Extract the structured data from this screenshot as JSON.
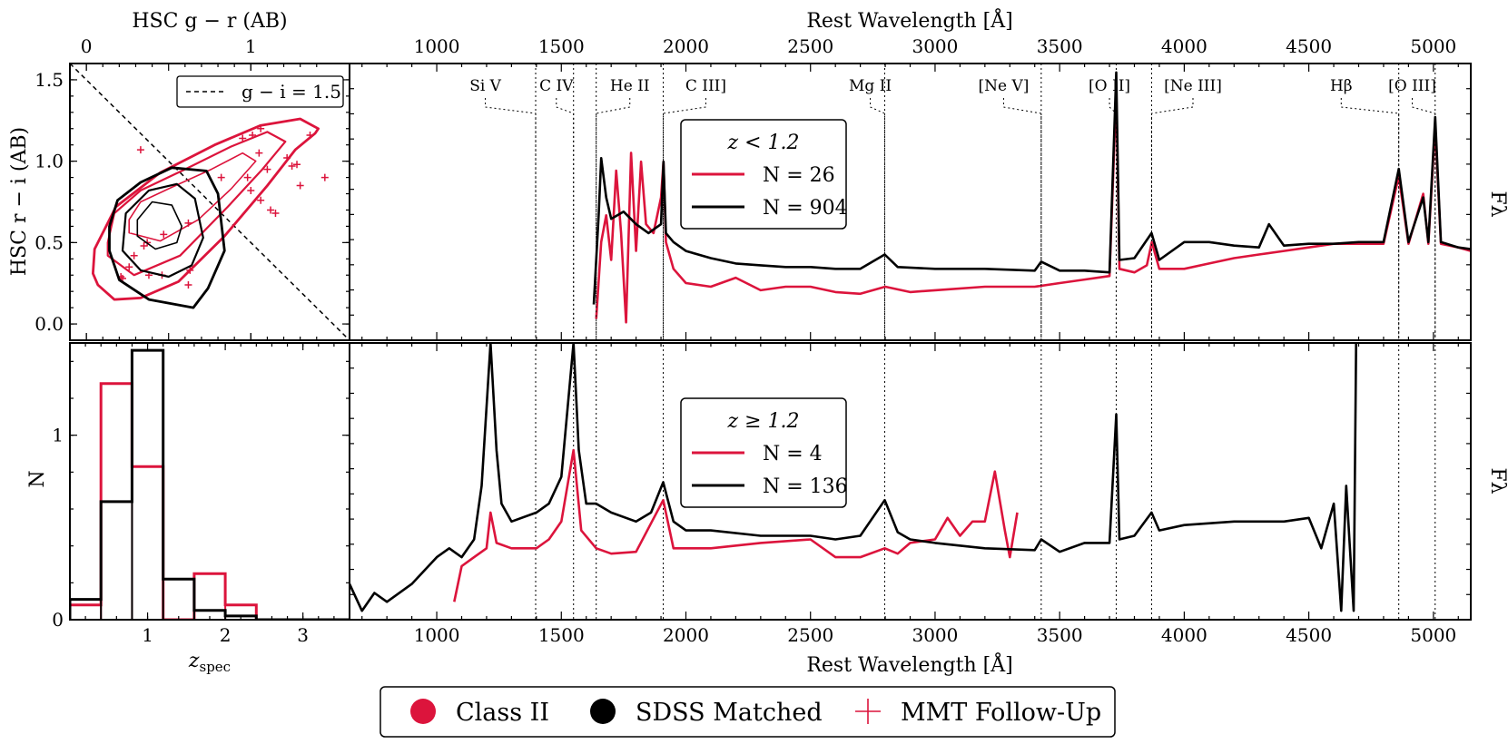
{
  "colors": {
    "class2": "#dc143c",
    "sdss": "#000000"
  },
  "legend_bottom": [
    {
      "label": "Class II",
      "marker": "circle",
      "color": "#dc143c"
    },
    {
      "label": "SDSS Matched",
      "marker": "circle",
      "color": "#000000"
    },
    {
      "label": "MMT Follow-Up",
      "marker": "plus",
      "color": "#dc143c"
    }
  ],
  "chart_data": [
    {
      "type": "scatter",
      "panel": "color-color",
      "xlabel_top": "HSC g − r (AB)",
      "ylabel": "HSC r − i (AB)",
      "xlim": [
        -0.1,
        1.6
      ],
      "ylim": [
        -0.1,
        1.6
      ],
      "x_ticks": [
        "0",
        "1"
      ],
      "y_ticks": [
        "0.0",
        "0.5",
        "1.0",
        "1.5"
      ],
      "reference_line": {
        "label": "g − i = 1.5",
        "equation": "r-i = 1.5 - (g-r)",
        "style": "dashed"
      },
      "series": [
        {
          "name": "Class II contours",
          "color": "#dc143c",
          "contours": [
            [
              [
                0.07,
                0.24
              ],
              [
                0.17,
                0.15
              ],
              [
                0.33,
                0.16
              ],
              [
                0.56,
                0.26
              ],
              [
                0.84,
                0.54
              ],
              [
                1.1,
                0.85
              ],
              [
                1.27,
                1.07
              ],
              [
                1.39,
                1.17
              ],
              [
                1.41,
                1.2
              ],
              [
                1.3,
                1.26
              ],
              [
                1.06,
                1.22
              ],
              [
                0.78,
                1.1
              ],
              [
                0.45,
                0.93
              ],
              [
                0.18,
                0.72
              ],
              [
                0.05,
                0.46
              ],
              [
                0.04,
                0.31
              ],
              [
                0.07,
                0.24
              ]
            ],
            [
              [
                0.13,
                0.42
              ],
              [
                0.29,
                0.3
              ],
              [
                0.57,
                0.42
              ],
              [
                0.86,
                0.72
              ],
              [
                1.07,
                0.95
              ],
              [
                1.21,
                1.12
              ],
              [
                1.1,
                1.18
              ],
              [
                0.88,
                1.09
              ],
              [
                0.6,
                0.95
              ],
              [
                0.33,
                0.82
              ],
              [
                0.17,
                0.68
              ],
              [
                0.13,
                0.5
              ],
              [
                0.13,
                0.42
              ]
            ],
            [
              [
                0.26,
                0.56
              ],
              [
                0.45,
                0.51
              ],
              [
                0.68,
                0.64
              ],
              [
                0.88,
                0.83
              ],
              [
                1.03,
                1.0
              ],
              [
                0.95,
                1.05
              ],
              [
                0.76,
                0.95
              ],
              [
                0.52,
                0.84
              ],
              [
                0.33,
                0.75
              ],
              [
                0.26,
                0.64
              ],
              [
                0.26,
                0.56
              ]
            ]
          ],
          "points": [
            [
              0.33,
              1.07
            ],
            [
              0.95,
              1.14
            ],
            [
              1.01,
              1.16
            ],
            [
              1.06,
              1.2
            ],
            [
              1.36,
              1.16
            ],
            [
              1.45,
              0.9
            ],
            [
              0.98,
              0.9
            ],
            [
              1.0,
              0.82
            ],
            [
              1.05,
              1.05
            ],
            [
              1.1,
              0.95
            ],
            [
              1.22,
              1.02
            ],
            [
              1.25,
              0.97
            ],
            [
              1.28,
              0.98
            ],
            [
              1.3,
              0.85
            ],
            [
              0.82,
              0.9
            ],
            [
              0.62,
              0.62
            ],
            [
              0.47,
              0.55
            ],
            [
              0.37,
              0.5
            ],
            [
              0.35,
              0.48
            ],
            [
              0.29,
              0.42
            ],
            [
              0.26,
              0.35
            ],
            [
              0.21,
              0.29
            ],
            [
              0.22,
              0.28
            ],
            [
              0.38,
              0.3
            ],
            [
              0.46,
              0.3
            ],
            [
              0.63,
              0.33
            ],
            [
              0.62,
              0.24
            ],
            [
              1.06,
              0.76
            ],
            [
              1.12,
              0.7
            ],
            [
              1.15,
              0.68
            ]
          ]
        },
        {
          "name": "SDSS Matched contours",
          "color": "#000000",
          "contours": [
            [
              [
                0.14,
                0.45
              ],
              [
                0.2,
                0.27
              ],
              [
                0.38,
                0.15
              ],
              [
                0.65,
                0.1
              ],
              [
                0.74,
                0.22
              ],
              [
                0.84,
                0.45
              ],
              [
                0.8,
                0.8
              ],
              [
                0.73,
                0.94
              ],
              [
                0.52,
                0.96
              ],
              [
                0.33,
                0.87
              ],
              [
                0.19,
                0.76
              ],
              [
                0.14,
                0.6
              ],
              [
                0.14,
                0.45
              ]
            ],
            [
              [
                0.22,
                0.45
              ],
              [
                0.33,
                0.33
              ],
              [
                0.5,
                0.29
              ],
              [
                0.64,
                0.36
              ],
              [
                0.71,
                0.53
              ],
              [
                0.66,
                0.77
              ],
              [
                0.55,
                0.86
              ],
              [
                0.38,
                0.82
              ],
              [
                0.24,
                0.68
              ],
              [
                0.22,
                0.45
              ]
            ],
            [
              [
                0.31,
                0.54
              ],
              [
                0.42,
                0.46
              ],
              [
                0.55,
                0.5
              ],
              [
                0.58,
                0.6
              ],
              [
                0.52,
                0.73
              ],
              [
                0.4,
                0.75
              ],
              [
                0.31,
                0.64
              ],
              [
                0.31,
                0.54
              ]
            ]
          ]
        }
      ]
    },
    {
      "type": "line",
      "panel": "histogram",
      "drawstyle": "steps",
      "xlabel": "z_spec",
      "ylabel": "N",
      "xlim": [
        0,
        3.6
      ],
      "ylim": [
        0,
        1.5
      ],
      "x_ticks": [
        "1",
        "2",
        "3"
      ],
      "y_ticks": [
        "0",
        "1"
      ],
      "bin_edges": [
        0,
        0.4,
        0.8,
        1.2,
        1.6,
        2.0,
        2.4,
        2.8,
        3.2,
        3.6
      ],
      "series": [
        {
          "name": "Class II",
          "color": "#dc143c",
          "values": [
            0.08,
            1.28,
            0.83,
            0.0,
            0.25,
            0.08,
            0.0,
            0.0,
            0.0
          ]
        },
        {
          "name": "SDSS Matched",
          "color": "#000000",
          "values": [
            0.11,
            0.64,
            1.46,
            0.22,
            0.05,
            0.02,
            0.0,
            0.0,
            0.0
          ]
        }
      ]
    },
    {
      "type": "line",
      "panel": "composite spectra z < 1.2",
      "xlabel": "Rest Wavelength [Å]",
      "ylabel": "Fλ",
      "xlim": [
        650,
        5150
      ],
      "x_ticks": [
        "1000",
        "1500",
        "2000",
        "2500",
        "3000",
        "3500",
        "4000",
        "4500",
        "5000"
      ],
      "legend": {
        "title": "z < 1.2",
        "entries": [
          "N = 26",
          "N = 904"
        ]
      },
      "series": [
        {
          "name": "Class II",
          "color": "#dc143c",
          "x": [
            1640,
            1660,
            1680,
            1700,
            1720,
            1740,
            1760,
            1780,
            1800,
            1820,
            1840,
            1870,
            1900,
            1910,
            1920,
            1950,
            2000,
            2100,
            2200,
            2300,
            2400,
            2500,
            2600,
            2700,
            2800,
            2900,
            3000,
            3200,
            3400,
            3500,
            3600,
            3700,
            3727,
            3740,
            3800,
            3850,
            3870,
            3900,
            4000,
            4100,
            4200,
            4300,
            4400,
            4500,
            4600,
            4700,
            4800,
            4861,
            4900,
            4959,
            4980,
            5007,
            5030,
            5100,
            5150
          ],
          "y": [
            0.02,
            0.45,
            0.6,
            0.35,
            0.85,
            0.5,
            0.0,
            0.95,
            0.4,
            0.9,
            0.55,
            0.5,
            0.7,
            0.9,
            0.45,
            0.3,
            0.22,
            0.2,
            0.25,
            0.18,
            0.2,
            0.2,
            0.17,
            0.16,
            0.2,
            0.17,
            0.18,
            0.2,
            0.2,
            0.22,
            0.24,
            0.26,
            1.3,
            0.3,
            0.28,
            0.32,
            0.45,
            0.3,
            0.3,
            0.33,
            0.36,
            0.38,
            0.4,
            0.42,
            0.44,
            0.44,
            0.44,
            0.82,
            0.44,
            0.72,
            0.44,
            1.1,
            0.44,
            0.42,
            0.4
          ]
        },
        {
          "name": "SDSS Matched",
          "color": "#000000",
          "x": [
            1630,
            1650,
            1660,
            1680,
            1700,
            1750,
            1800,
            1850,
            1900,
            1910,
            1920,
            1950,
            2000,
            2100,
            2200,
            2300,
            2400,
            2500,
            2600,
            2700,
            2798,
            2850,
            3000,
            3200,
            3400,
            3426,
            3500,
            3600,
            3700,
            3727,
            3740,
            3800,
            3869,
            3900,
            4000,
            4100,
            4200,
            4300,
            4340,
            4400,
            4500,
            4600,
            4700,
            4800,
            4861,
            4900,
            4959,
            4980,
            5007,
            5030,
            5100,
            5150
          ],
          "y": [
            0.1,
            0.6,
            0.92,
            0.7,
            0.58,
            0.62,
            0.55,
            0.5,
            0.55,
            0.9,
            0.5,
            0.45,
            0.4,
            0.36,
            0.33,
            0.32,
            0.31,
            0.31,
            0.3,
            0.3,
            0.38,
            0.31,
            0.3,
            0.3,
            0.29,
            0.34,
            0.29,
            0.29,
            0.28,
            1.4,
            0.35,
            0.36,
            0.5,
            0.35,
            0.45,
            0.45,
            0.43,
            0.42,
            0.55,
            0.43,
            0.44,
            0.44,
            0.45,
            0.45,
            0.86,
            0.45,
            0.7,
            0.45,
            1.15,
            0.45,
            0.42,
            0.41
          ]
        }
      ]
    },
    {
      "type": "line",
      "panel": "composite spectra z >= 1.2",
      "xlabel": "Rest Wavelength [Å]",
      "ylabel": "Fλ",
      "xlim": [
        650,
        5150
      ],
      "x_ticks": [
        "1000",
        "1500",
        "2000",
        "2500",
        "3000",
        "3500",
        "4000",
        "4500",
        "5000"
      ],
      "legend": {
        "title": "z ≥ 1.2",
        "entries": [
          "N = 4",
          "N = 136"
        ]
      },
      "series": [
        {
          "name": "Class II",
          "color": "#dc143c",
          "x": [
            1070,
            1100,
            1150,
            1200,
            1216,
            1240,
            1300,
            1400,
            1450,
            1500,
            1549,
            1580,
            1640,
            1700,
            1800,
            1909,
            1950,
            2100,
            2300,
            2500,
            2600,
            2700,
            2798,
            2850,
            2900,
            3000,
            3050,
            3100,
            3150,
            3200,
            3240,
            3280,
            3300,
            3330
          ],
          "y": [
            0.05,
            0.25,
            0.3,
            0.35,
            0.55,
            0.38,
            0.35,
            0.35,
            0.4,
            0.5,
            0.9,
            0.45,
            0.35,
            0.32,
            0.33,
            0.62,
            0.35,
            0.35,
            0.38,
            0.4,
            0.3,
            0.3,
            0.35,
            0.32,
            0.38,
            0.4,
            0.52,
            0.42,
            0.5,
            0.5,
            0.78,
            0.45,
            0.3,
            0.55
          ]
        },
        {
          "name": "SDSS Matched",
          "color": "#000000",
          "x": [
            650,
            700,
            750,
            800,
            900,
            1000,
            1050,
            1100,
            1150,
            1180,
            1216,
            1240,
            1260,
            1300,
            1400,
            1450,
            1500,
            1549,
            1570,
            1600,
            1640,
            1700,
            1800,
            1860,
            1909,
            1950,
            2000,
            2100,
            2300,
            2500,
            2600,
            2700,
            2798,
            2850,
            2900,
            3000,
            3200,
            3400,
            3426,
            3500,
            3600,
            3700,
            3727,
            3740,
            3800,
            3869,
            3900,
            4000,
            4200,
            4400,
            4500,
            4550,
            4600,
            4630,
            4650,
            4680,
            4690
          ],
          "y": [
            0.15,
            0.0,
            0.1,
            0.05,
            0.15,
            0.3,
            0.35,
            0.3,
            0.4,
            0.7,
            1.5,
            0.9,
            0.6,
            0.5,
            0.55,
            0.6,
            0.75,
            1.5,
            0.9,
            0.6,
            0.6,
            0.55,
            0.5,
            0.55,
            0.72,
            0.5,
            0.45,
            0.45,
            0.42,
            0.42,
            0.4,
            0.42,
            0.62,
            0.44,
            0.4,
            0.38,
            0.35,
            0.34,
            0.4,
            0.33,
            0.38,
            0.38,
            1.1,
            0.4,
            0.42,
            0.55,
            0.45,
            0.48,
            0.5,
            0.5,
            0.52,
            0.35,
            0.6,
            0.0,
            0.7,
            0.0,
            1.55
          ]
        }
      ]
    }
  ],
  "emission_lines": [
    {
      "label": "Si V",
      "wavelength": 1397,
      "label_at": 1195
    },
    {
      "label": "C IV",
      "wavelength": 1549,
      "label_at": 1480
    },
    {
      "label": "He II",
      "wavelength": 1640,
      "label_at": 1775
    },
    {
      "label": "C III]",
      "wavelength": 1909,
      "label_at": 2080
    },
    {
      "label": "Mg II",
      "wavelength": 2798,
      "label_at": 2740
    },
    {
      "label": "[Ne V]",
      "wavelength": 3426,
      "label_at": 3275
    },
    {
      "label": "[O II]",
      "wavelength": 3727,
      "label_at": 3700
    },
    {
      "label": "[Ne III]",
      "wavelength": 3869,
      "label_at": 4035
    },
    {
      "label": "Hβ",
      "wavelength": 4861,
      "label_at": 4630
    },
    {
      "label": "[O III]",
      "wavelength": 5007,
      "label_at": 4915
    }
  ]
}
